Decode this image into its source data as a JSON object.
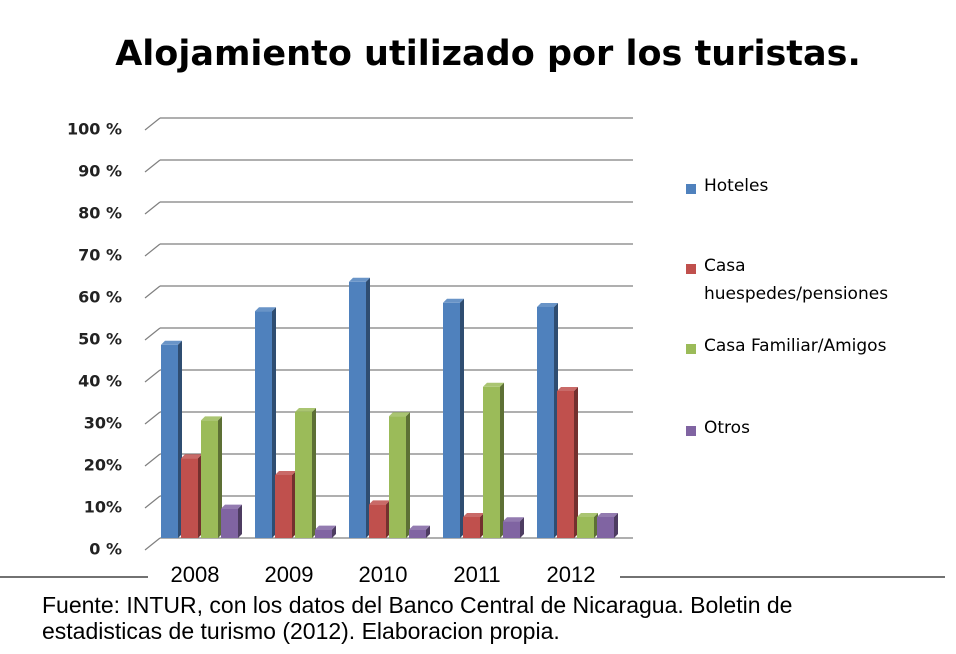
{
  "chart_data": {
    "type": "bar",
    "title": "Alojamiento utilizado por los turistas.",
    "categories": [
      "2008",
      "2009",
      "2010",
      "2011",
      "2012"
    ],
    "series": [
      {
        "name": "Hoteles",
        "color": "#4f81bd",
        "values": [
          46,
          54,
          61,
          56,
          55
        ]
      },
      {
        "name": "Casa huespedes/pensiones",
        "color": "#c0504d",
        "values": [
          19,
          15,
          8,
          5,
          35
        ]
      },
      {
        "name": "Casa Familiar/Amigos",
        "color": "#9bbb59",
        "values": [
          28,
          30,
          29,
          36,
          5
        ]
      },
      {
        "name": "Otros",
        "color": "#8064a2",
        "values": [
          7,
          2,
          2,
          4,
          5
        ]
      }
    ],
    "ylim": [
      0,
      100
    ],
    "yticks": [
      {
        "value": 0,
        "label": "0 %"
      },
      {
        "value": 10,
        "label": "10%"
      },
      {
        "value": 20,
        "label": "20%"
      },
      {
        "value": 30,
        "label": "30%"
      },
      {
        "value": 40,
        "label": "40 %"
      },
      {
        "value": 50,
        "label": "50 %"
      },
      {
        "value": 60,
        "label": "60 %"
      },
      {
        "value": 70,
        "label": "70 %"
      },
      {
        "value": 80,
        "label": "80 %"
      },
      {
        "value": 90,
        "label": "90 %"
      },
      {
        "value": 100,
        "label": "100 %"
      }
    ],
    "grid": true,
    "legend": "right",
    "source": [
      "Fuente: INTUR, con los datos del Banco Central de Nicaragua. Boletin de",
      "estadisticas de turismo (2012). Elaboracion propia."
    ]
  }
}
